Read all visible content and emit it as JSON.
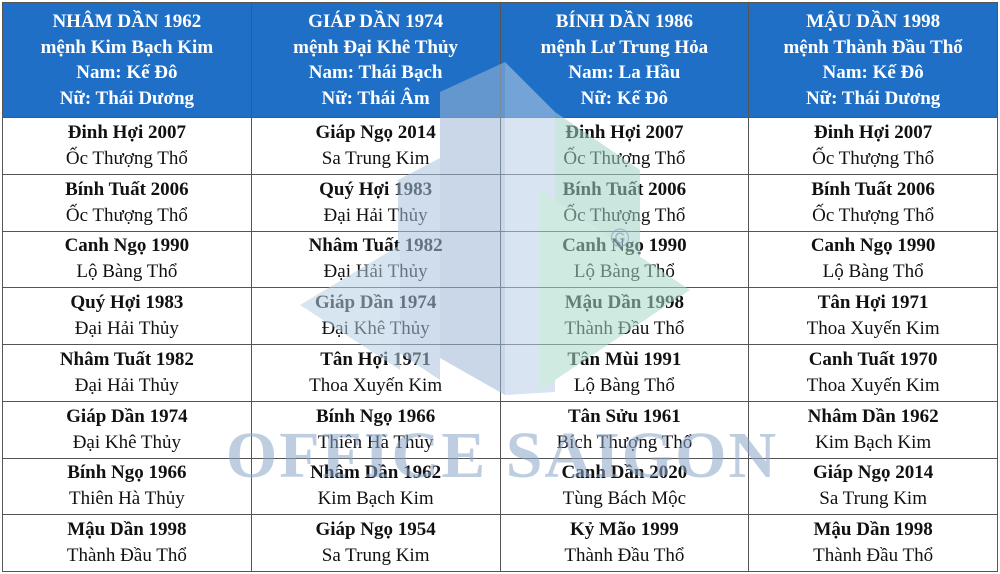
{
  "headers": [
    [
      "NHÂM DẦN 1962",
      "mệnh Kim Bạch Kim",
      "Nam: Kế Đô",
      "Nữ: Thái Dương"
    ],
    [
      "GIÁP DẦN 1974",
      "mệnh Đại Khê Thủy",
      "Nam: Thái Bạch",
      "Nữ: Thái Âm"
    ],
    [
      "BÍNH DẦN 1986",
      "mệnh Lư Trung Hỏa",
      "Nam: La Hầu",
      "Nữ: Kế Đô"
    ],
    [
      "MẬU DẦN 1998",
      "mệnh Thành Đầu Thổ",
      "Nam: Kế Đô",
      "Nữ: Thái Dương"
    ]
  ],
  "rows": [
    [
      [
        "Đinh Hợi 2007",
        "Ốc Thượng Thổ"
      ],
      [
        "Giáp Ngọ 2014",
        "Sa Trung Kim"
      ],
      [
        "Đinh Hợi 2007",
        "Ốc Thượng Thổ"
      ],
      [
        "Đinh Hợi 2007",
        "Ốc Thượng Thổ"
      ]
    ],
    [
      [
        "Bính Tuất 2006",
        "Ốc Thượng Thổ"
      ],
      [
        "Quý Hợi 1983",
        "Đại Hải Thủy"
      ],
      [
        "Bính Tuất 2006",
        "Ốc Thượng Thổ"
      ],
      [
        "Bính Tuất 2006",
        "Ốc Thượng Thổ"
      ]
    ],
    [
      [
        "Canh Ngọ 1990",
        "Lộ Bàng Thổ"
      ],
      [
        "Nhâm Tuất 1982",
        "Đại Hải Thủy"
      ],
      [
        "Canh Ngọ 1990",
        "Lộ Bàng Thổ"
      ],
      [
        "Canh Ngọ 1990",
        "Lộ Bàng Thổ"
      ]
    ],
    [
      [
        "Quý Hợi 1983",
        "Đại Hải Thủy"
      ],
      [
        "Giáp Dần 1974",
        "Đại Khê Thủy"
      ],
      [
        "Mậu Dần 1998",
        "Thành Đầu Thổ"
      ],
      [
        "Tân Hợi 1971",
        "Thoa Xuyến Kim"
      ]
    ],
    [
      [
        "Nhâm Tuất 1982",
        "Đại Hải Thủy"
      ],
      [
        "Tân Hợi 1971",
        "Thoa Xuyến Kim"
      ],
      [
        "Tân Mùi 1991",
        "Lộ Bàng Thổ"
      ],
      [
        "Canh Tuất 1970",
        "Thoa Xuyến Kim"
      ]
    ],
    [
      [
        "Giáp Dần 1974",
        "Đại Khê Thủy"
      ],
      [
        "Bính Ngọ 1966",
        "Thiên Hà Thủy"
      ],
      [
        "Tân Sửu 1961",
        "Bích Thượng Thổ"
      ],
      [
        "Nhâm Dần 1962",
        "Kim Bạch Kim"
      ]
    ],
    [
      [
        "Bính Ngọ 1966",
        "Thiên Hà Thủy"
      ],
      [
        "Nhâm Dần 1962",
        "Kim Bạch Kim"
      ],
      [
        "Canh Dần 2020",
        "Tùng Bách Mộc"
      ],
      [
        "Giáp Ngọ 2014",
        "Sa Trung Kim"
      ]
    ],
    [
      [
        "Mậu Dần 1998",
        "Thành Đầu Thổ"
      ],
      [
        "Giáp Ngọ 1954",
        "Sa Trung Kim"
      ],
      [
        "Kỷ Mão 1999",
        "Thành Đầu Thổ"
      ],
      [
        "Mậu Dần 1998",
        "Thành Đầu Thổ"
      ]
    ]
  ],
  "watermark": {
    "text": "OFFICE SAIGON",
    "copyright": "©",
    "icon": "building-logo-icon"
  },
  "colors": {
    "header_bg": "#1f6fc6",
    "header_text": "#ffffff",
    "border": "#555555",
    "watermark_blue": "#9db8d6",
    "watermark_green": "#9fd3c4"
  }
}
